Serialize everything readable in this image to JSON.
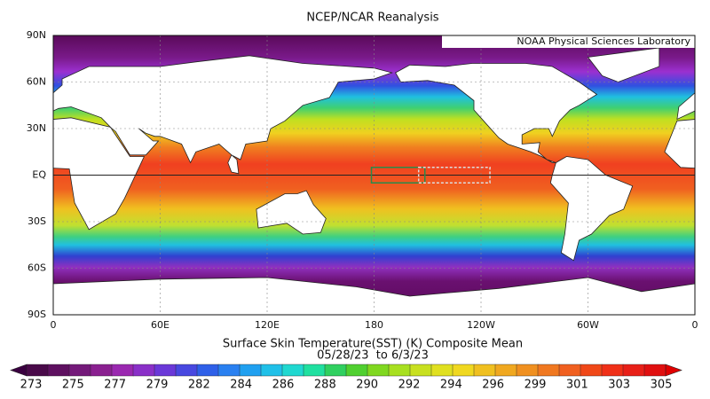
{
  "header": {
    "title": "NCEP/NCAR Reanalysis",
    "credit": "NOAA Physical Sciences Laboratory"
  },
  "map": {
    "lat_labels": [
      "90N",
      "60N",
      "30N",
      "EQ",
      "30S",
      "60S",
      "90S"
    ],
    "lon_labels": [
      "0",
      "60E",
      "120E",
      "180",
      "120W",
      "60W",
      "0"
    ]
  },
  "caption": {
    "line1": "Surface Skin Temperature(SST) (K) Composite Mean",
    "line2": "05/28/23  to 6/3/23"
  },
  "colorbar": {
    "labels": [
      "273",
      "275",
      "277",
      "279",
      "282",
      "284",
      "286",
      "288",
      "290",
      "292",
      "294",
      "296",
      "299",
      "301",
      "303",
      "305"
    ]
  }
}
